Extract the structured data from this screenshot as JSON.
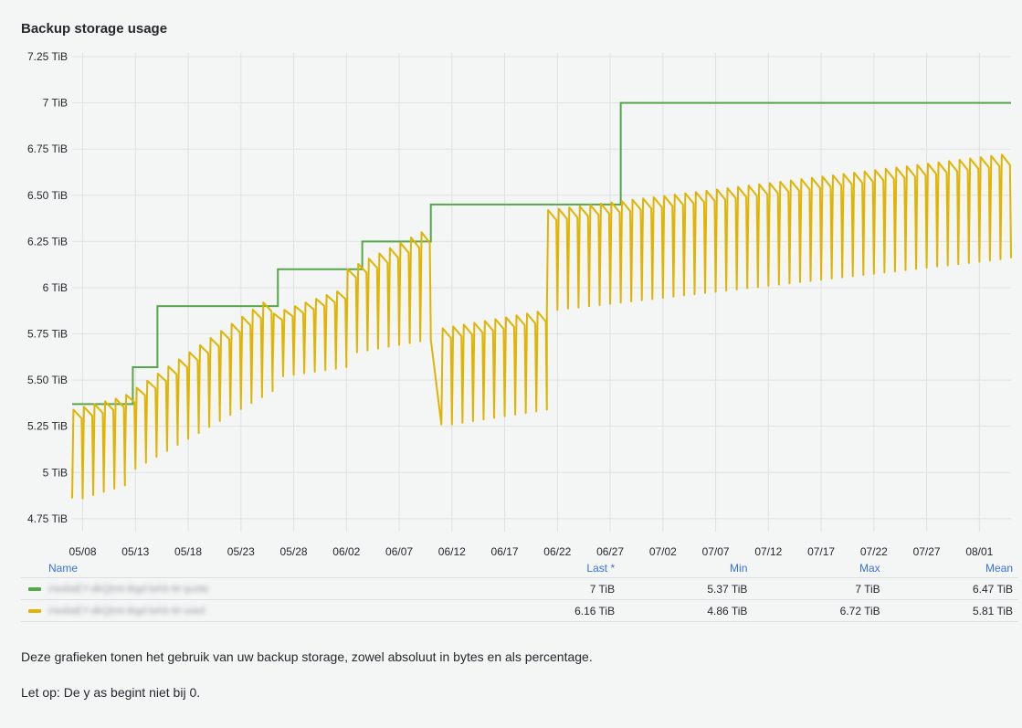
{
  "panel": {
    "title": "Backup storage usage"
  },
  "chart_data": {
    "type": "line",
    "title": "Backup storage usage",
    "xlabel": "",
    "ylabel": "",
    "ylim": [
      4.68,
      7.27
    ],
    "y_ticks": [
      4.75,
      5,
      5.25,
      5.5,
      5.75,
      6,
      6.25,
      6.5,
      6.75,
      7,
      7.25
    ],
    "y_tick_labels": [
      "4.75 TiB",
      "5 TiB",
      "5.25 TiB",
      "5.50 TiB",
      "5.75 TiB",
      "6 TiB",
      "6.25 TiB",
      "6.50 TiB",
      "6.75 TiB",
      "7 TiB",
      "7.25 TiB"
    ],
    "x_range": [
      "2024-05-07",
      "2024-08-04"
    ],
    "x_ticks": [
      "2024-05-08",
      "2024-05-13",
      "2024-05-18",
      "2024-05-23",
      "2024-05-28",
      "2024-06-02",
      "2024-06-07",
      "2024-06-12",
      "2024-06-17",
      "2024-06-22",
      "2024-06-27",
      "2024-07-02",
      "2024-07-07",
      "2024-07-12",
      "2024-07-17",
      "2024-07-22",
      "2024-07-27",
      "2024-08-01"
    ],
    "x_tick_labels": [
      "05/08",
      "05/13",
      "05/18",
      "05/23",
      "05/28",
      "06/02",
      "06/07",
      "06/12",
      "06/17",
      "06/22",
      "06/27",
      "07/02",
      "07/07",
      "07/12",
      "07/17",
      "07/22",
      "07/27",
      "08/01"
    ],
    "grid": true,
    "series": [
      {
        "color": "#56a64b",
        "interpolation": "step",
        "points": [
          [
            "2024-05-07",
            5.37
          ],
          [
            "2024-05-12 18:00",
            5.57
          ],
          [
            "2024-05-15 02:00",
            5.9
          ],
          [
            "2024-05-26 12:00",
            6.1
          ],
          [
            "2024-06-03 12:00",
            6.25
          ],
          [
            "2024-06-10 00:00",
            6.45
          ],
          [
            "2024-06-28 00:00",
            7.0
          ],
          [
            "2024-08-04 00:00",
            7.0
          ]
        ]
      },
      {
        "color": "#e0b400",
        "interpolation": "sawtooth",
        "segments": [
          {
            "start": "2024-05-07",
            "end": "2024-05-12",
            "base": [
              4.86,
              4.93
            ],
            "peak": [
              5.34,
              5.4
            ]
          },
          {
            "start": "2024-05-12",
            "end": "2024-05-26",
            "base": [
              5.02,
              5.44
            ],
            "peak": [
              5.42,
              5.92
            ]
          },
          {
            "start": "2024-05-26",
            "end": "2024-06-02",
            "base": [
              5.52,
              5.57
            ],
            "peak": [
              5.86,
              5.98
            ]
          },
          {
            "start": "2024-06-02",
            "end": "2024-06-10",
            "base": [
              5.65,
              5.72
            ],
            "peak": [
              6.1,
              6.3
            ]
          },
          {
            "start": "2024-06-11",
            "end": "2024-06-21",
            "base": [
              5.26,
              5.34
            ],
            "peak": [
              5.78,
              5.87
            ]
          },
          {
            "start": "2024-06-21",
            "end": "2024-08-04",
            "base": [
              5.88,
              6.16
            ],
            "peak": [
              6.42,
              6.72
            ]
          }
        ]
      }
    ]
  },
  "legend": {
    "headers": {
      "name": "Name",
      "last": "Last *",
      "min": "Min",
      "max": "Max",
      "mean": "Mean"
    },
    "rows": [
      {
        "color": "#56a64b",
        "name": "mediaEY-dkQtmt-tkgd-bAS-M quota",
        "last": "7 TiB",
        "min": "5.37 TiB",
        "max": "7 TiB",
        "mean": "6.47 TiB"
      },
      {
        "color": "#e0b400",
        "name": "mediaEY-dkQtmt-tkgd-bAS-M used",
        "last": "6.16 TiB",
        "min": "4.86 TiB",
        "max": "6.72 TiB",
        "mean": "5.81 TiB"
      }
    ]
  },
  "description": {
    "line1": "Deze grafieken tonen het gebruik van uw backup storage, zowel absoluut in bytes en als percentage.",
    "line2": "Let op: De y as begint niet bij 0."
  }
}
